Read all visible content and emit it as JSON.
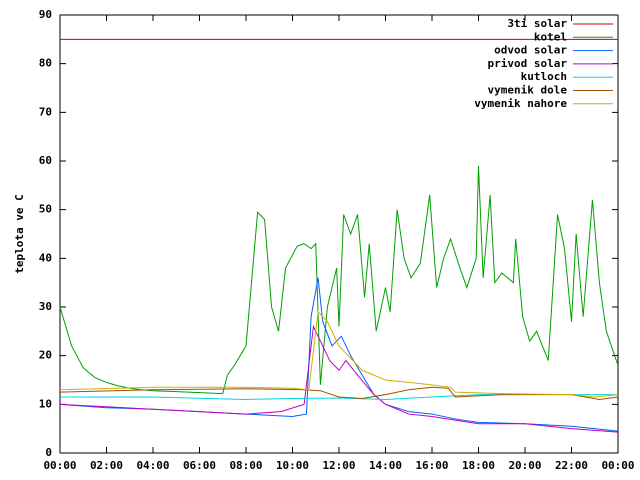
{
  "chart_data": {
    "type": "line",
    "y_label": "teplota ve C",
    "xlim": [
      0,
      24
    ],
    "xticks": [
      {
        "value": 0,
        "label": "00:00"
      },
      {
        "value": 2,
        "label": "02:00"
      },
      {
        "value": 4,
        "label": "04:00"
      },
      {
        "value": 6,
        "label": "06:00"
      },
      {
        "value": 8,
        "label": "08:00"
      },
      {
        "value": 10,
        "label": "10:00"
      },
      {
        "value": 12,
        "label": "12:00"
      },
      {
        "value": 14,
        "label": "14:00"
      },
      {
        "value": 16,
        "label": "16:00"
      },
      {
        "value": 18,
        "label": "18:00"
      },
      {
        "value": 20,
        "label": "20:00"
      },
      {
        "value": 22,
        "label": "22:00"
      },
      {
        "value": 24,
        "label": "00:00"
      }
    ],
    "ylim": [
      0,
      90
    ],
    "yticks": [
      0,
      10,
      20,
      30,
      40,
      50,
      60,
      70,
      80,
      90
    ],
    "legend": "top-right",
    "series": [
      {
        "name": "3ti solar",
        "color": "#d00000",
        "x": [
          0,
          24
        ],
        "values": [
          85,
          85
        ]
      },
      {
        "name": "kotel",
        "color": "#00a000",
        "x": [
          0,
          0.5,
          1,
          1.5,
          2,
          2.5,
          3,
          3.5,
          4,
          5,
          6,
          7,
          7.2,
          7.5,
          8,
          8.5,
          8.8,
          9.1,
          9.4,
          9.7,
          10.2,
          10.5,
          10.8,
          11,
          11.2,
          11.5,
          11.9,
          12.0,
          12.2,
          12.5,
          12.8,
          13.1,
          13.3,
          13.6,
          14.0,
          14.2,
          14.5,
          14.8,
          15.1,
          15.5,
          15.9,
          16.2,
          16.5,
          16.8,
          17.2,
          17.5,
          17.9,
          18.0,
          18.2,
          18.5,
          18.7,
          19,
          19.5,
          19.6,
          19.9,
          20.2,
          20.5,
          21,
          21.4,
          21.7,
          22,
          22.2,
          22.5,
          22.9,
          23.2,
          23.5,
          24
        ],
        "values": [
          30,
          22,
          17.5,
          15.5,
          14.5,
          13.8,
          13.3,
          13,
          12.8,
          12.6,
          12.4,
          12.2,
          16,
          18,
          22,
          49.5,
          48,
          30,
          25,
          38,
          42.5,
          43,
          42,
          43,
          14,
          30,
          38,
          26,
          49,
          45,
          49,
          32,
          43,
          25,
          34,
          29,
          50,
          40,
          36,
          39,
          53,
          34,
          40,
          44,
          38,
          34,
          40,
          59,
          36,
          53,
          35,
          37,
          35,
          44,
          28,
          23,
          25,
          19,
          49,
          42,
          27,
          45,
          28,
          52,
          35,
          25,
          18
        ]
      },
      {
        "name": "odvod solar",
        "color": "#0060ff",
        "x": [
          0,
          2,
          4,
          6,
          8,
          10,
          10.6,
          10.8,
          11.1,
          11.3,
          11.7,
          12.1,
          12.5,
          13,
          13.5,
          14,
          15,
          16,
          17,
          18,
          20,
          22,
          24
        ],
        "values": [
          10,
          9.3,
          9,
          8.5,
          8,
          7.5,
          8,
          28,
          36,
          27,
          22,
          24,
          20,
          16,
          12,
          10,
          8.5,
          8,
          7,
          6.3,
          6,
          5.5,
          4.5
        ]
      },
      {
        "name": "privod solar",
        "color": "#c000c0",
        "x": [
          0,
          4,
          8,
          9.5,
          10.5,
          10.9,
          11.3,
          11.6,
          12,
          12.3,
          12.8,
          13.5,
          14,
          15,
          16,
          18,
          20,
          22,
          24
        ],
        "values": [
          10,
          9,
          8,
          8.5,
          10,
          26,
          22,
          19,
          17,
          19,
          16,
          12,
          10,
          8,
          7.5,
          6,
          6,
          5,
          4.3
        ]
      },
      {
        "name": "kutloch",
        "color": "#00d8d8",
        "x": [
          0,
          4,
          8,
          10,
          12,
          14,
          16,
          18,
          20,
          22,
          24
        ],
        "values": [
          11.5,
          11.5,
          11,
          11.2,
          11.3,
          11,
          11.5,
          12,
          12,
          12,
          12
        ]
      },
      {
        "name": "vymenik dole",
        "color": "#a05000",
        "x": [
          0,
          4,
          8,
          10.5,
          11.2,
          12,
          13,
          14,
          15,
          16,
          16.7,
          17,
          19,
          22,
          23.2,
          24
        ],
        "values": [
          12.5,
          13,
          13.2,
          13,
          12.8,
          11.5,
          11.2,
          12,
          13,
          13.5,
          13.3,
          11.5,
          12,
          12,
          11,
          11.5
        ]
      },
      {
        "name": "vymenik nahore",
        "color": "#d0b000",
        "x": [
          0,
          4,
          8,
          10,
          10.7,
          11.1,
          11.5,
          12,
          13,
          14,
          15,
          16,
          16.8,
          17,
          19,
          22,
          23,
          24
        ],
        "values": [
          13,
          13.5,
          13.5,
          13.3,
          13,
          29,
          27,
          22,
          17,
          15,
          14.5,
          14,
          13.5,
          12.5,
          12.2,
          12,
          11.5,
          12
        ]
      }
    ]
  }
}
